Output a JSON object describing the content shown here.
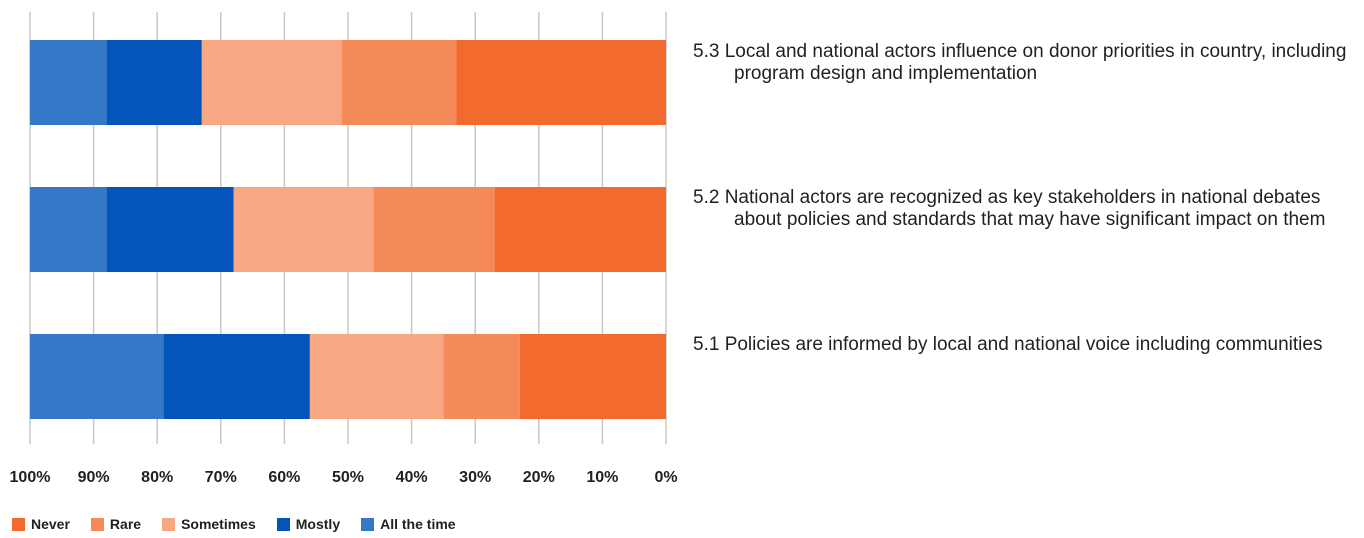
{
  "chart_data": {
    "type": "bar",
    "orientation": "horizontal-stacked-100",
    "x_axis_reversed": true,
    "xlim": [
      0,
      100
    ],
    "x_ticks": [
      "100%",
      "90%",
      "80%",
      "70%",
      "60%",
      "50%",
      "40%",
      "30%",
      "20%",
      "10%",
      "0%"
    ],
    "grid": true,
    "legend_position": "bottom-left",
    "categories": [
      "5.3  Local and national actors influence on donor priorities in country, including program design and implementation",
      "5.2 National actors are recognized as key stakeholders in national debates about policies and standards that may have significant impact on them",
      "5.1  Policies are informed by local and national voice including communities"
    ],
    "series": [
      {
        "name": "Never",
        "color": "#f26a2e",
        "values": [
          33,
          27,
          23
        ]
      },
      {
        "name": "Rare",
        "color": "#f48a58",
        "values": [
          18,
          19,
          12
        ]
      },
      {
        "name": "Sometimes",
        "color": "#f7a882",
        "values": [
          22,
          22,
          21
        ]
      },
      {
        "name": "Mostly",
        "color": "#0455bb",
        "values": [
          15,
          20,
          23
        ]
      },
      {
        "name": "All the time",
        "color": "#3578c8",
        "values": [
          12,
          12,
          21
        ]
      }
    ]
  }
}
